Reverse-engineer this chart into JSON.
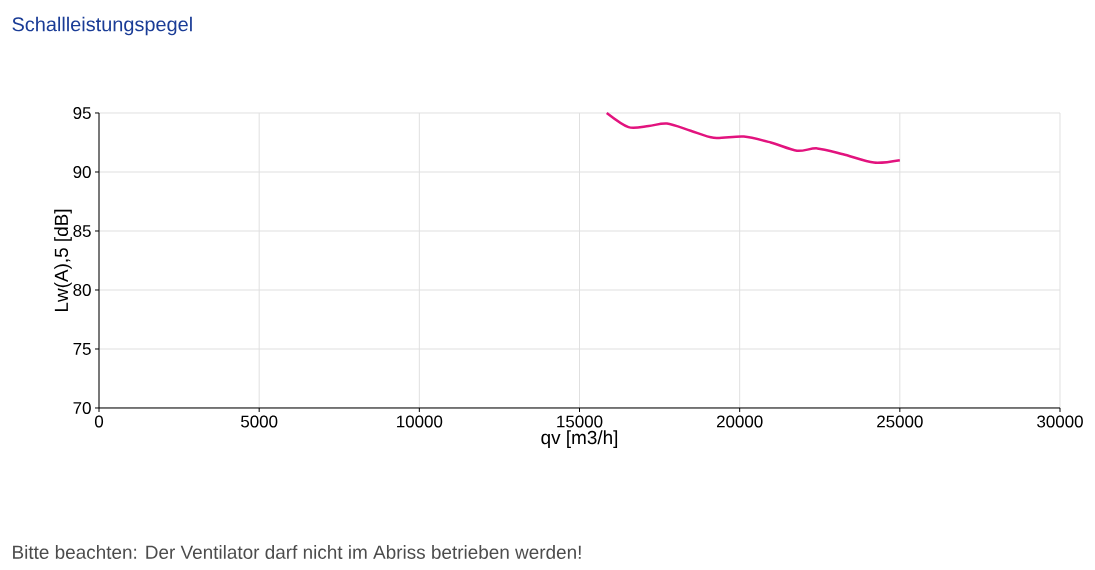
{
  "chart_data": {
    "type": "line",
    "title": "Schallleistungspegel",
    "xlabel": "qv [m3/h]",
    "ylabel": "Lw(A),5 [dB]",
    "annotations": [
      "Bitte beachten: Der Ventilator darf nicht im Abriss betrieben werden!"
    ],
    "x": [
      15850,
      16530,
      17160,
      17730,
      18470,
      19190,
      20130,
      20970,
      21790,
      22420,
      23230,
      24190,
      25000
    ],
    "series": [
      {
        "color": "#e2137e",
        "values": [
          95.0,
          93.8,
          93.9,
          94.1,
          93.5,
          92.9,
          93.0,
          92.5,
          91.8,
          92.0,
          91.5,
          90.8,
          91.0
        ]
      }
    ],
    "xlim": [
      0,
      30000
    ],
    "ylim": [
      70,
      95
    ],
    "xticks": [
      0,
      5000,
      10000,
      15000,
      20000,
      25000,
      30000
    ],
    "yticks": [
      70,
      75,
      80,
      85,
      90,
      95
    ],
    "grid": true,
    "marker": "none",
    "line_style": "solid"
  }
}
